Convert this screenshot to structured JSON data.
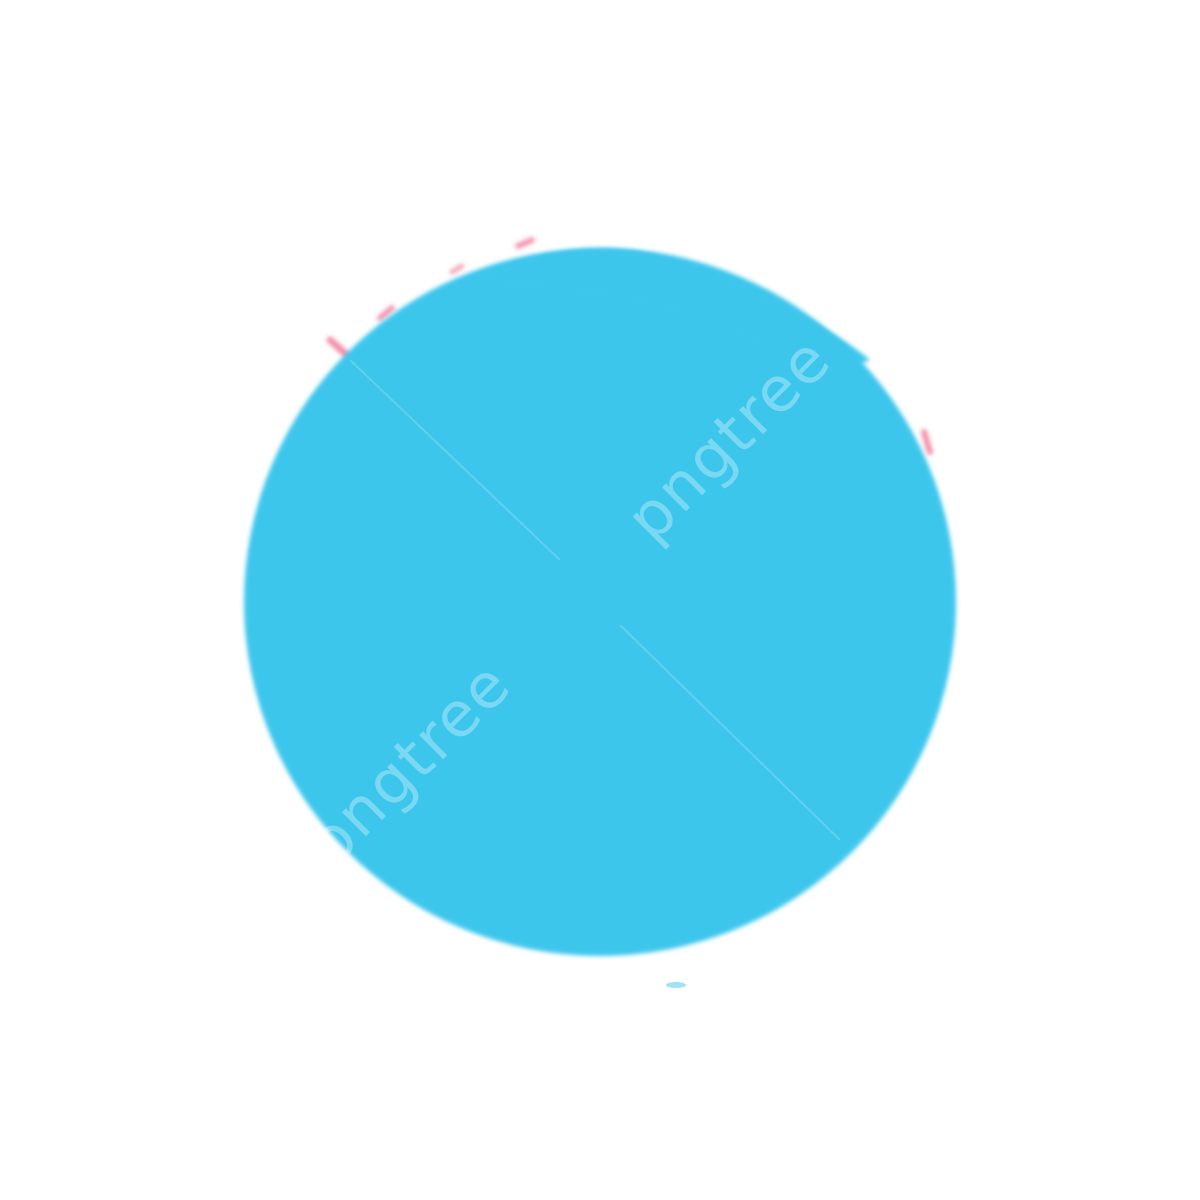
{
  "image": {
    "background_color": "#ffffff",
    "circle_color": "#3ec6ec",
    "accent_color": "#f06a8e"
  },
  "watermarks": [
    {
      "text": "pngtree"
    },
    {
      "text": "pngtree"
    }
  ]
}
